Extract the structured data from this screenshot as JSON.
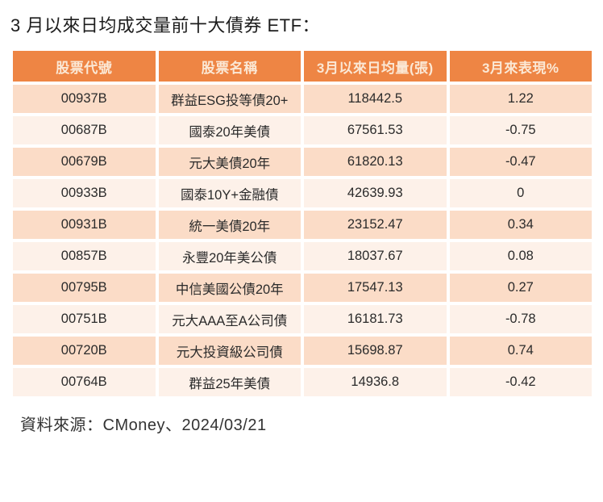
{
  "page": {
    "title": "3 月以來日均成交量前十大債券 ETF：",
    "source": "資料來源：CMoney、2024/03/21"
  },
  "colors": {
    "header_bg": "#EE8544",
    "header_text": "#FBE8D5",
    "row_odd_bg": "#FBDCC7",
    "row_even_bg": "#FDF1E9",
    "cell_text": "#2B2B2B"
  },
  "chart_data": {
    "type": "table",
    "title": "3 月以來日均成交量前十大債券 ETF：",
    "columns": [
      "股票代號",
      "股票名稱",
      "3月以來日均量(張)",
      "3月來表現%"
    ],
    "rows": [
      [
        "00937B",
        "群益ESG投等債20+",
        "118442.5",
        "1.22"
      ],
      [
        "00687B",
        "國泰20年美債",
        "67561.53",
        "-0.75"
      ],
      [
        "00679B",
        "元大美債20年",
        "61820.13",
        "-0.47"
      ],
      [
        "00933B",
        "國泰10Y+金融債",
        "42639.93",
        "0"
      ],
      [
        "00931B",
        "統一美債20年",
        "23152.47",
        "0.34"
      ],
      [
        "00857B",
        "永豐20年美公債",
        "18037.67",
        "0.08"
      ],
      [
        "00795B",
        "中信美國公債20年",
        "17547.13",
        "0.27"
      ],
      [
        "00751B",
        "元大AAA至A公司債",
        "16181.73",
        "-0.78"
      ],
      [
        "00720B",
        "元大投資級公司債",
        "15698.87",
        "0.74"
      ],
      [
        "00764B",
        "群益25年美債",
        "14936.8",
        "-0.42"
      ]
    ],
    "source": "資料來源：CMoney、2024/03/21"
  }
}
